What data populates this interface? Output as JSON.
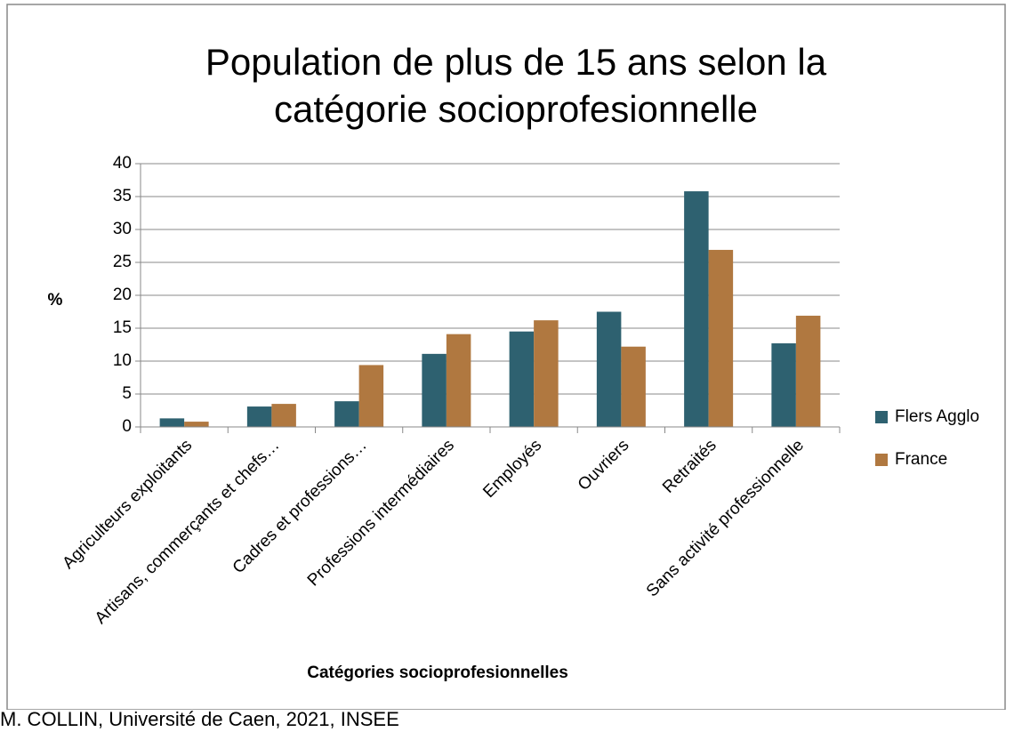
{
  "chart_data": {
    "type": "bar",
    "title": [
      "Population de plus de 15 ans selon la",
      "catégorie socioprofesionnelle"
    ],
    "y_label": "%",
    "x_label": "Catégories socioprofesionnelles",
    "source": "M. COLLIN, Université de Caen, 2021, INSEE",
    "categories": [
      "Agriculteurs exploitants",
      "Artisans, commerçants et chefs…",
      "Cadres et professions…",
      "Professions intermédiaires",
      "Employés",
      "Ouvriers",
      "Retraités",
      "Sans activité professionnelle"
    ],
    "series": [
      {
        "name": "Flers Agglo",
        "color": "#2e6170",
        "values": [
          1.3,
          3.1,
          3.9,
          11.1,
          14.5,
          17.5,
          35.8,
          12.7
        ]
      },
      {
        "name": "France",
        "color": "#b07840",
        "values": [
          0.8,
          3.5,
          9.4,
          14.1,
          16.2,
          12.2,
          26.9,
          16.9
        ]
      }
    ],
    "ylim": [
      0,
      40
    ],
    "yticks": [
      0,
      5,
      10,
      15,
      20,
      25,
      30,
      35,
      40
    ],
    "grid": true,
    "legend": "right"
  }
}
